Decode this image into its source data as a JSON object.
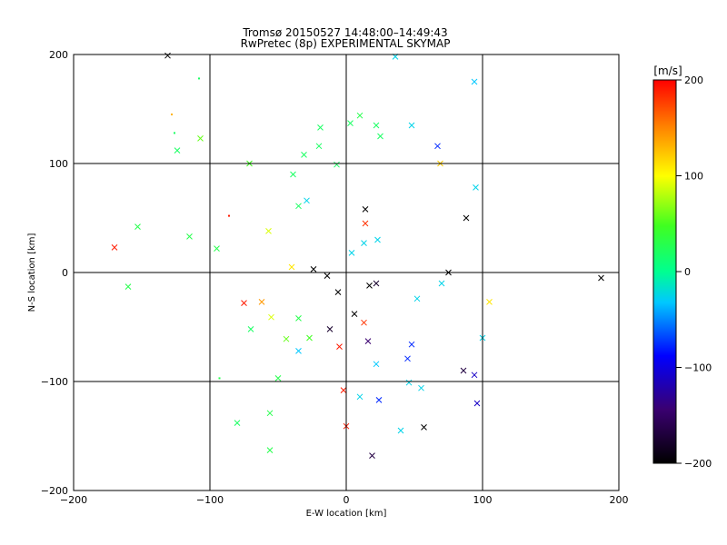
{
  "chart_data": {
    "type": "scatter",
    "title": "Tromsø 20150527 14:48:00–14:49:43",
    "subtitle": "RwPretec (8p) EXPERIMENTAL SKYMAP",
    "xlabel": "E-W location [km]",
    "ylabel": "N-S location [km]",
    "xlim": [
      -200,
      200
    ],
    "ylim": [
      -200,
      200
    ],
    "xticks": [
      -200,
      -100,
      0,
      100,
      200
    ],
    "yticks": [
      -200,
      -100,
      0,
      100,
      200
    ],
    "grid": true,
    "colorbar": {
      "label": "[m/s]",
      "range": [
        -200,
        200
      ],
      "ticks": [
        200,
        100,
        0,
        -100,
        -200
      ],
      "colormap": "rainbow (black-purple-blue-cyan-green-yellow-red)"
    },
    "markers": [
      "dot",
      "x"
    ],
    "points": [
      {
        "x": -170,
        "y": 23,
        "v": 190,
        "m": "x"
      },
      {
        "x": -153,
        "y": 42,
        "v": 30,
        "m": "x"
      },
      {
        "x": -160,
        "y": -13,
        "v": 30,
        "m": "x"
      },
      {
        "x": -131,
        "y": 199,
        "v": -200,
        "m": "x"
      },
      {
        "x": -128,
        "y": 145,
        "v": 130,
        "m": "dot"
      },
      {
        "x": -124,
        "y": 112,
        "v": 20,
        "m": "x"
      },
      {
        "x": -126,
        "y": 128,
        "v": 20,
        "m": "dot"
      },
      {
        "x": -107,
        "y": 123,
        "v": 60,
        "m": "x"
      },
      {
        "x": -108,
        "y": 178,
        "v": 20,
        "m": "dot"
      },
      {
        "x": -95,
        "y": 22,
        "v": 30,
        "m": "x"
      },
      {
        "x": -86,
        "y": 52,
        "v": 190,
        "m": "dot"
      },
      {
        "x": -93,
        "y": -97,
        "v": 30,
        "m": "dot"
      },
      {
        "x": -75,
        "y": -28,
        "v": 190,
        "m": "x"
      },
      {
        "x": -70,
        "y": -52,
        "v": 20,
        "m": "x"
      },
      {
        "x": -62,
        "y": -27,
        "v": 140,
        "m": "x"
      },
      {
        "x": -55,
        "y": -41,
        "v": 90,
        "m": "x"
      },
      {
        "x": -44,
        "y": -61,
        "v": 60,
        "m": "x"
      },
      {
        "x": -50,
        "y": -97,
        "v": 30,
        "m": "x"
      },
      {
        "x": -56,
        "y": -129,
        "v": 30,
        "m": "x"
      },
      {
        "x": -56,
        "y": -163,
        "v": 30,
        "m": "x"
      },
      {
        "x": -80,
        "y": -138,
        "v": 20,
        "m": "x"
      },
      {
        "x": -71,
        "y": 100,
        "v": 50,
        "m": "x"
      },
      {
        "x": -57,
        "y": 38,
        "v": 90,
        "m": "x"
      },
      {
        "x": -39,
        "y": 90,
        "v": 20,
        "m": "x"
      },
      {
        "x": -31,
        "y": 108,
        "v": 20,
        "m": "x"
      },
      {
        "x": -20,
        "y": 116,
        "v": 20,
        "m": "x"
      },
      {
        "x": -19,
        "y": 133,
        "v": 20,
        "m": "x"
      },
      {
        "x": -7,
        "y": 99,
        "v": 20,
        "m": "x"
      },
      {
        "x": 3,
        "y": 137,
        "v": 20,
        "m": "x"
      },
      {
        "x": 10,
        "y": 144,
        "v": 30,
        "m": "x"
      },
      {
        "x": 22,
        "y": 135,
        "v": 20,
        "m": "x"
      },
      {
        "x": 25,
        "y": 125,
        "v": 20,
        "m": "x"
      },
      {
        "x": 36,
        "y": 198,
        "v": -40,
        "m": "x"
      },
      {
        "x": 48,
        "y": 135,
        "v": -40,
        "m": "x"
      },
      {
        "x": 67,
        "y": 116,
        "v": -90,
        "m": "x"
      },
      {
        "x": 69,
        "y": 100,
        "v": 120,
        "m": "x"
      },
      {
        "x": 94,
        "y": 175,
        "v": -50,
        "m": "x"
      },
      {
        "x": 95,
        "y": 78,
        "v": -40,
        "m": "x"
      },
      {
        "x": 88,
        "y": 50,
        "v": -200,
        "m": "x"
      },
      {
        "x": 14,
        "y": 58,
        "v": -200,
        "m": "x"
      },
      {
        "x": 14,
        "y": 45,
        "v": 180,
        "m": "x"
      },
      {
        "x": -14,
        "y": -3,
        "v": -200,
        "m": "x"
      },
      {
        "x": -24,
        "y": 3,
        "v": -200,
        "m": "x"
      },
      {
        "x": -6,
        "y": -18,
        "v": -200,
        "m": "x"
      },
      {
        "x": 6,
        "y": -38,
        "v": -200,
        "m": "x"
      },
      {
        "x": 17,
        "y": -12,
        "v": -200,
        "m": "x"
      },
      {
        "x": 22,
        "y": -10,
        "v": -180,
        "m": "x"
      },
      {
        "x": 13,
        "y": -46,
        "v": 180,
        "m": "x"
      },
      {
        "x": -12,
        "y": -52,
        "v": -180,
        "m": "x"
      },
      {
        "x": -5,
        "y": -68,
        "v": 190,
        "m": "x"
      },
      {
        "x": 16,
        "y": -63,
        "v": -150,
        "m": "x"
      },
      {
        "x": 22,
        "y": -84,
        "v": -50,
        "m": "x"
      },
      {
        "x": 45,
        "y": -79,
        "v": -90,
        "m": "x"
      },
      {
        "x": 48,
        "y": -66,
        "v": -90,
        "m": "x"
      },
      {
        "x": 46,
        "y": -101,
        "v": -40,
        "m": "x"
      },
      {
        "x": 55,
        "y": -106,
        "v": -40,
        "m": "x"
      },
      {
        "x": 10,
        "y": -114,
        "v": -40,
        "m": "x"
      },
      {
        "x": -2,
        "y": -108,
        "v": 190,
        "m": "x"
      },
      {
        "x": 0,
        "y": -141,
        "v": 190,
        "m": "x"
      },
      {
        "x": 24,
        "y": -117,
        "v": -90,
        "m": "x"
      },
      {
        "x": 40,
        "y": -145,
        "v": -40,
        "m": "x"
      },
      {
        "x": 57,
        "y": -142,
        "v": -200,
        "m": "x"
      },
      {
        "x": 19,
        "y": -168,
        "v": -170,
        "m": "x"
      },
      {
        "x": 86,
        "y": -90,
        "v": -170,
        "m": "x"
      },
      {
        "x": 94,
        "y": -94,
        "v": -120,
        "m": "x"
      },
      {
        "x": 96,
        "y": -120,
        "v": -120,
        "m": "x"
      },
      {
        "x": 105,
        "y": -27,
        "v": 110,
        "m": "x"
      },
      {
        "x": 75,
        "y": 0,
        "v": -200,
        "m": "x"
      },
      {
        "x": 187,
        "y": -5,
        "v": -200,
        "m": "x"
      },
      {
        "x": -35,
        "y": -72,
        "v": -50,
        "m": "x"
      },
      {
        "x": -35,
        "y": -42,
        "v": 30,
        "m": "x"
      },
      {
        "x": -27,
        "y": -60,
        "v": 50,
        "m": "x"
      },
      {
        "x": 4,
        "y": 18,
        "v": -40,
        "m": "x"
      },
      {
        "x": 13,
        "y": 27,
        "v": -40,
        "m": "x"
      },
      {
        "x": 23,
        "y": 30,
        "v": -40,
        "m": "x"
      },
      {
        "x": 70,
        "y": -10,
        "v": -40,
        "m": "x"
      },
      {
        "x": 52,
        "y": -24,
        "v": -40,
        "m": "x"
      },
      {
        "x": 100,
        "y": -60,
        "v": -40,
        "m": "x"
      },
      {
        "x": -115,
        "y": 33,
        "v": 30,
        "m": "x"
      },
      {
        "x": -35,
        "y": 61,
        "v": 20,
        "m": "x"
      },
      {
        "x": -40,
        "y": 5,
        "v": 110,
        "m": "x"
      },
      {
        "x": -29,
        "y": 66,
        "v": -40,
        "m": "x"
      }
    ]
  }
}
